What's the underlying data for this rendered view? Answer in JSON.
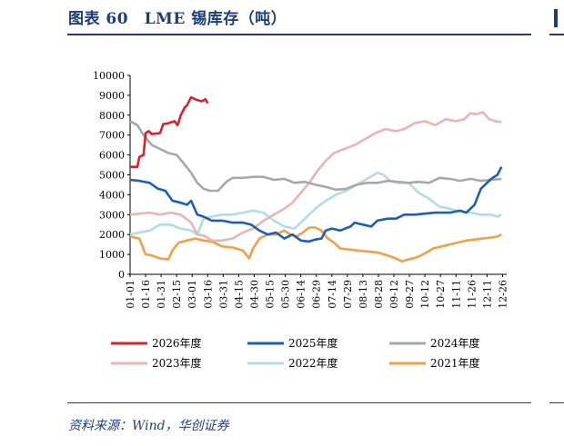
{
  "header": {
    "title": "图表 60　LME 锡库存（吨）"
  },
  "footer": {
    "source": "资料来源：Wind，华创证券"
  },
  "chart_data": {
    "type": "line",
    "title": "LME 锡库存（吨）",
    "ylim": [
      0,
      10000
    ],
    "yticks": [
      0,
      1000,
      2000,
      3000,
      4000,
      5000,
      6000,
      7000,
      8000,
      9000,
      10000
    ],
    "x_tick_labels": [
      "01-01",
      "01-16",
      "01-31",
      "02-15",
      "03-01",
      "03-16",
      "03-31",
      "04-15",
      "04-30",
      "05-15",
      "05-30",
      "06-14",
      "06-29",
      "07-14",
      "07-29",
      "08-13",
      "08-28",
      "09-12",
      "09-27",
      "10-12",
      "10-27",
      "11-11",
      "11-26",
      "12-11",
      "12-26"
    ],
    "x_unit": "day of year (MM-DD)",
    "legend_position": "bottom",
    "series": [
      {
        "name": "2026年度",
        "color": "#d9222a",
        "points": [
          [
            1,
            5400
          ],
          [
            8,
            5400
          ],
          [
            10,
            5900
          ],
          [
            14,
            6000
          ],
          [
            16,
            7100
          ],
          [
            19,
            7200
          ],
          [
            22,
            7050
          ],
          [
            30,
            7100
          ],
          [
            33,
            7550
          ],
          [
            38,
            7600
          ],
          [
            44,
            7700
          ],
          [
            47,
            7500
          ],
          [
            50,
            8000
          ],
          [
            54,
            8400
          ],
          [
            56,
            8500
          ],
          [
            60,
            8900
          ],
          [
            64,
            8800
          ],
          [
            70,
            8700
          ],
          [
            74,
            8800
          ],
          [
            76,
            8600
          ]
        ]
      },
      {
        "name": "2025年度",
        "color": "#1f5fb0",
        "points": [
          [
            1,
            4750
          ],
          [
            10,
            4700
          ],
          [
            20,
            4600
          ],
          [
            28,
            4300
          ],
          [
            35,
            4200
          ],
          [
            42,
            3700
          ],
          [
            50,
            3600
          ],
          [
            56,
            3500
          ],
          [
            60,
            3700
          ],
          [
            66,
            3000
          ],
          [
            72,
            2900
          ],
          [
            80,
            2700
          ],
          [
            90,
            2700
          ],
          [
            100,
            2600
          ],
          [
            110,
            2600
          ],
          [
            118,
            2500
          ],
          [
            126,
            2200
          ],
          [
            134,
            2000
          ],
          [
            142,
            2100
          ],
          [
            150,
            1800
          ],
          [
            158,
            2000
          ],
          [
            166,
            1700
          ],
          [
            174,
            1650
          ],
          [
            180,
            1750
          ],
          [
            186,
            1800
          ],
          [
            190,
            2200
          ],
          [
            196,
            2300
          ],
          [
            204,
            2200
          ],
          [
            214,
            2400
          ],
          [
            218,
            2600
          ],
          [
            226,
            2500
          ],
          [
            234,
            2400
          ],
          [
            240,
            2700
          ],
          [
            250,
            2800
          ],
          [
            258,
            2800
          ],
          [
            266,
            3000
          ],
          [
            276,
            3000
          ],
          [
            286,
            3050
          ],
          [
            296,
            3100
          ],
          [
            310,
            3100
          ],
          [
            320,
            3200
          ],
          [
            326,
            3100
          ],
          [
            334,
            3500
          ],
          [
            340,
            4300
          ],
          [
            346,
            4600
          ],
          [
            350,
            4800
          ],
          [
            356,
            5000
          ],
          [
            360,
            5400
          ]
        ]
      },
      {
        "name": "2024年度",
        "color": "#a8a8a8",
        "points": [
          [
            1,
            7700
          ],
          [
            8,
            7500
          ],
          [
            14,
            7000
          ],
          [
            22,
            6500
          ],
          [
            30,
            6300
          ],
          [
            38,
            6100
          ],
          [
            46,
            6000
          ],
          [
            54,
            5500
          ],
          [
            60,
            5100
          ],
          [
            66,
            4600
          ],
          [
            72,
            4300
          ],
          [
            78,
            4200
          ],
          [
            86,
            4200
          ],
          [
            94,
            4650
          ],
          [
            100,
            4850
          ],
          [
            110,
            4850
          ],
          [
            120,
            4900
          ],
          [
            130,
            4900
          ],
          [
            140,
            4750
          ],
          [
            150,
            4800
          ],
          [
            160,
            4600
          ],
          [
            170,
            4650
          ],
          [
            180,
            4500
          ],
          [
            190,
            4400
          ],
          [
            200,
            4250
          ],
          [
            210,
            4300
          ],
          [
            220,
            4500
          ],
          [
            230,
            4600
          ],
          [
            240,
            4600
          ],
          [
            250,
            4700
          ],
          [
            260,
            4650
          ],
          [
            270,
            4600
          ],
          [
            280,
            4650
          ],
          [
            290,
            4600
          ],
          [
            300,
            4850
          ],
          [
            310,
            4800
          ],
          [
            320,
            4700
          ],
          [
            330,
            4800
          ],
          [
            340,
            4700
          ],
          [
            350,
            4750
          ],
          [
            360,
            4800
          ]
        ]
      },
      {
        "name": "2023年度",
        "color": "#e8b4b4",
        "points": [
          [
            1,
            3000
          ],
          [
            10,
            3050
          ],
          [
            20,
            3100
          ],
          [
            30,
            3000
          ],
          [
            40,
            3100
          ],
          [
            50,
            3000
          ],
          [
            60,
            2600
          ],
          [
            66,
            2000
          ],
          [
            72,
            1950
          ],
          [
            80,
            1700
          ],
          [
            90,
            1700
          ],
          [
            100,
            1800
          ],
          [
            110,
            2100
          ],
          [
            120,
            2300
          ],
          [
            130,
            2700
          ],
          [
            140,
            3000
          ],
          [
            150,
            3300
          ],
          [
            158,
            3600
          ],
          [
            166,
            4100
          ],
          [
            174,
            4600
          ],
          [
            182,
            5200
          ],
          [
            190,
            5700
          ],
          [
            198,
            6100
          ],
          [
            208,
            6300
          ],
          [
            218,
            6500
          ],
          [
            228,
            6800
          ],
          [
            238,
            7100
          ],
          [
            248,
            7300
          ],
          [
            258,
            7200
          ],
          [
            266,
            7300
          ],
          [
            276,
            7600
          ],
          [
            286,
            7700
          ],
          [
            296,
            7500
          ],
          [
            306,
            7800
          ],
          [
            316,
            7700
          ],
          [
            324,
            7800
          ],
          [
            330,
            8100
          ],
          [
            336,
            8050
          ],
          [
            342,
            8150
          ],
          [
            348,
            7800
          ],
          [
            354,
            7700
          ],
          [
            360,
            7650
          ]
        ]
      },
      {
        "name": "2022年度",
        "color": "#b2dbe6",
        "points": [
          [
            1,
            2000
          ],
          [
            10,
            2100
          ],
          [
            20,
            2200
          ],
          [
            30,
            2500
          ],
          [
            40,
            2500
          ],
          [
            50,
            2300
          ],
          [
            60,
            2200
          ],
          [
            66,
            2000
          ],
          [
            72,
            2800
          ],
          [
            80,
            2900
          ],
          [
            90,
            3000
          ],
          [
            100,
            3000
          ],
          [
            110,
            3100
          ],
          [
            120,
            3200
          ],
          [
            130,
            3100
          ],
          [
            140,
            2700
          ],
          [
            150,
            2400
          ],
          [
            160,
            2300
          ],
          [
            170,
            2800
          ],
          [
            180,
            3300
          ],
          [
            190,
            3700
          ],
          [
            200,
            4000
          ],
          [
            210,
            4200
          ],
          [
            220,
            4500
          ],
          [
            230,
            4800
          ],
          [
            240,
            5100
          ],
          [
            246,
            5000
          ],
          [
            252,
            4700
          ],
          [
            260,
            4600
          ],
          [
            270,
            4600
          ],
          [
            280,
            4100
          ],
          [
            290,
            3800
          ],
          [
            300,
            3400
          ],
          [
            310,
            3300
          ],
          [
            320,
            3150
          ],
          [
            330,
            3100
          ],
          [
            340,
            3000
          ],
          [
            350,
            3000
          ],
          [
            356,
            2900
          ],
          [
            360,
            3000
          ]
        ]
      },
      {
        "name": "2021年度",
        "color": "#f0a04a",
        "points": [
          [
            1,
            1900
          ],
          [
            10,
            1800
          ],
          [
            16,
            1000
          ],
          [
            22,
            950
          ],
          [
            30,
            800
          ],
          [
            38,
            750
          ],
          [
            42,
            1200
          ],
          [
            48,
            1600
          ],
          [
            56,
            1700
          ],
          [
            64,
            1800
          ],
          [
            72,
            1700
          ],
          [
            80,
            1650
          ],
          [
            90,
            1400
          ],
          [
            100,
            1350
          ],
          [
            110,
            1200
          ],
          [
            116,
            800
          ],
          [
            120,
            1300
          ],
          [
            126,
            1800
          ],
          [
            134,
            2000
          ],
          [
            142,
            2000
          ],
          [
            150,
            2200
          ],
          [
            156,
            2000
          ],
          [
            162,
            1900
          ],
          [
            168,
            2100
          ],
          [
            174,
            2350
          ],
          [
            180,
            2350
          ],
          [
            186,
            2200
          ],
          [
            192,
            1800
          ],
          [
            198,
            1600
          ],
          [
            204,
            1300
          ],
          [
            212,
            1250
          ],
          [
            220,
            1200
          ],
          [
            230,
            1150
          ],
          [
            240,
            1100
          ],
          [
            250,
            950
          ],
          [
            258,
            800
          ],
          [
            264,
            650
          ],
          [
            270,
            750
          ],
          [
            278,
            850
          ],
          [
            286,
            1050
          ],
          [
            294,
            1300
          ],
          [
            302,
            1400
          ],
          [
            310,
            1500
          ],
          [
            318,
            1600
          ],
          [
            326,
            1700
          ],
          [
            334,
            1750
          ],
          [
            342,
            1800
          ],
          [
            350,
            1850
          ],
          [
            356,
            1900
          ],
          [
            360,
            2000
          ]
        ]
      }
    ]
  }
}
